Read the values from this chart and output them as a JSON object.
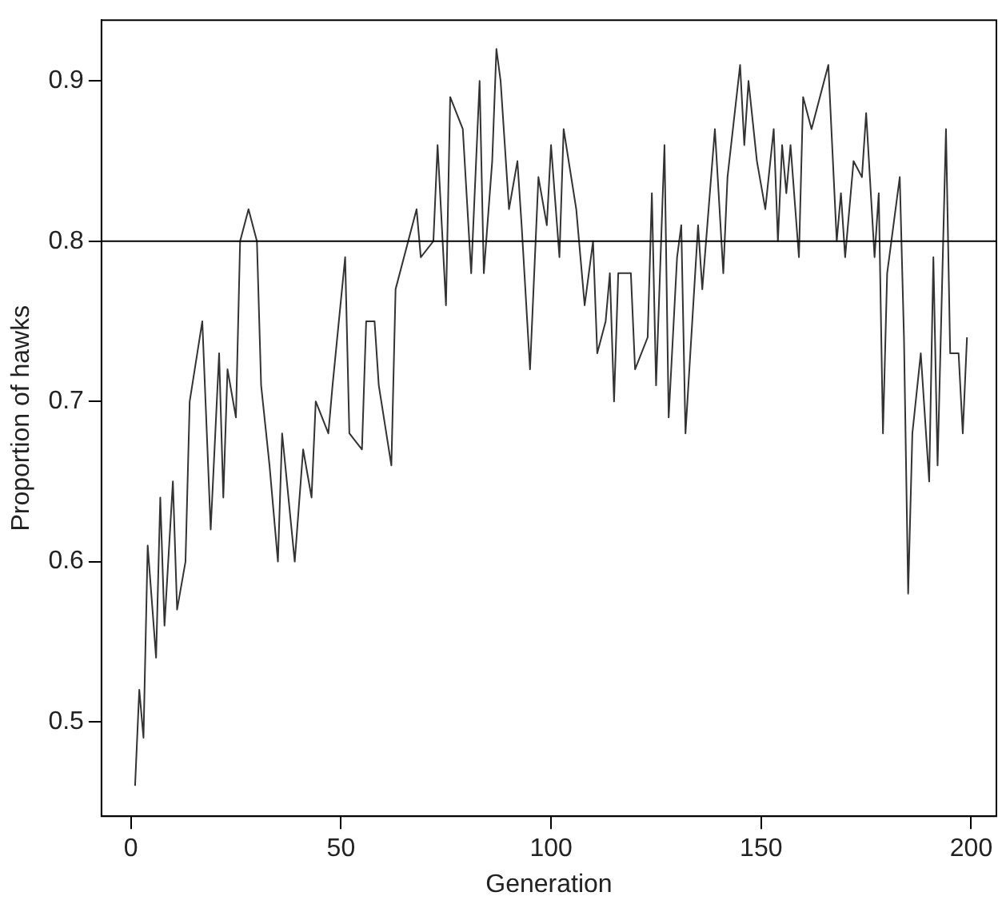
{
  "chart_data": {
    "type": "line",
    "xlabel": "Generation",
    "ylabel": "Proportion of hawks",
    "x": [
      1,
      2,
      3,
      4,
      6,
      7,
      8,
      10,
      11,
      13,
      14,
      17,
      19,
      21,
      22,
      23,
      25,
      26,
      28,
      30,
      31,
      33,
      35,
      36,
      39,
      41,
      43,
      44,
      47,
      48,
      51,
      52,
      55,
      56,
      58,
      59,
      62,
      63,
      68,
      69,
      72,
      73,
      75,
      76,
      79,
      81,
      83,
      84,
      86,
      87,
      88,
      90,
      92,
      93,
      95,
      97,
      99,
      100,
      102,
      103,
      106,
      108,
      110,
      111,
      113,
      114,
      115,
      116,
      119,
      120,
      123,
      124,
      125,
      127,
      128,
      130,
      131,
      132,
      135,
      136,
      139,
      141,
      142,
      145,
      146,
      147,
      149,
      151,
      153,
      154,
      155,
      156,
      157,
      159,
      160,
      162,
      165,
      166,
      168,
      169,
      170,
      172,
      174,
      175,
      177,
      178,
      179,
      180,
      183,
      184,
      185,
      186,
      188,
      190,
      191,
      192,
      194,
      195,
      197,
      198,
      199
    ],
    "series": [
      {
        "color": "#333333",
        "values": [
          0.46,
          0.52,
          0.49,
          0.61,
          0.54,
          0.64,
          0.56,
          0.65,
          0.57,
          0.6,
          0.7,
          0.75,
          0.62,
          0.73,
          0.64,
          0.72,
          0.69,
          0.8,
          0.82,
          0.8,
          0.71,
          0.66,
          0.6,
          0.68,
          0.6,
          0.67,
          0.64,
          0.7,
          0.68,
          0.71,
          0.79,
          0.68,
          0.67,
          0.75,
          0.75,
          0.71,
          0.66,
          0.77,
          0.82,
          0.79,
          0.8,
          0.86,
          0.76,
          0.89,
          0.87,
          0.78,
          0.9,
          0.78,
          0.85,
          0.92,
          0.9,
          0.82,
          0.85,
          0.81,
          0.72,
          0.84,
          0.81,
          0.86,
          0.79,
          0.87,
          0.82,
          0.76,
          0.8,
          0.73,
          0.75,
          0.78,
          0.7,
          0.78,
          0.78,
          0.72,
          0.74,
          0.83,
          0.71,
          0.86,
          0.69,
          0.79,
          0.81,
          0.68,
          0.81,
          0.77,
          0.87,
          0.78,
          0.84,
          0.91,
          0.86,
          0.9,
          0.85,
          0.82,
          0.87,
          0.8,
          0.86,
          0.83,
          0.86,
          0.79,
          0.89,
          0.87,
          0.9,
          0.91,
          0.8,
          0.83,
          0.79,
          0.85,
          0.84,
          0.88,
          0.79,
          0.83,
          0.68,
          0.78,
          0.84,
          0.74,
          0.58,
          0.68,
          0.73,
          0.65,
          0.79,
          0.66,
          0.87,
          0.73,
          0.73,
          0.68,
          0.74
        ]
      }
    ],
    "xlim": [
      -7,
      206
    ],
    "xticks": [
      0,
      50,
      100,
      150,
      200
    ],
    "ylim": [
      0.441,
      0.938
    ],
    "yticks": [
      0.5,
      0.6,
      0.7,
      0.8,
      0.9
    ],
    "ref_lines": [
      {
        "axis": "y",
        "value": 0.8,
        "color": "#000000"
      }
    ],
    "grid": false,
    "legend": false,
    "marker": "none",
    "line_style": "solid"
  }
}
